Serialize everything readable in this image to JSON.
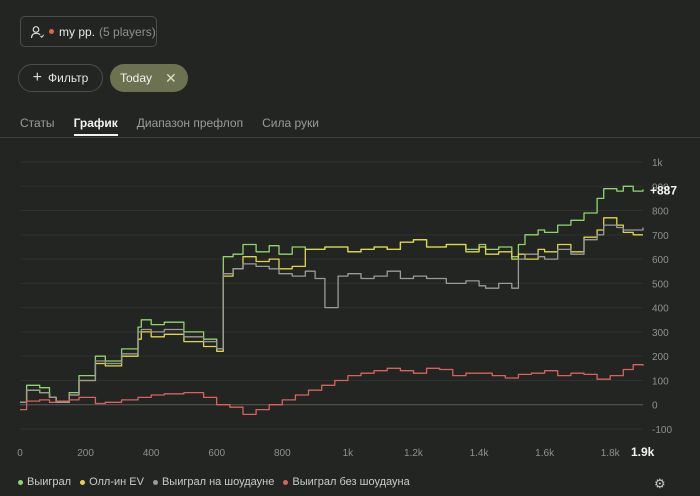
{
  "player": {
    "name": "my pp.",
    "count": "(5 players)",
    "status_color": "#e0663e"
  },
  "filters": {
    "add_label": "Фильтр",
    "active_chip": "Today",
    "remove_glyph": "✕"
  },
  "tabs": [
    {
      "label": "Статы",
      "active": false
    },
    {
      "label": "График",
      "active": true
    },
    {
      "label": "Диапазон префлоп",
      "active": false
    },
    {
      "label": "Сила руки",
      "active": false
    }
  ],
  "chart_data": {
    "type": "line",
    "x_ticks": [
      "0",
      "200",
      "400",
      "600",
      "800",
      "1k",
      "1.2k",
      "1.4k",
      "1.6k",
      "1.8k",
      "1.9k"
    ],
    "y_ticks": [
      "1k",
      "900",
      "800",
      "700",
      "600",
      "500",
      "400",
      "300",
      "200",
      "100",
      "0",
      "-100"
    ],
    "xlim": [
      0,
      1900
    ],
    "ylim": [
      -100,
      1000
    ],
    "end_label": "+887",
    "series": [
      {
        "name": "Выиграл",
        "color": "#8fd66a",
        "x": [
          0,
          20,
          60,
          90,
          110,
          150,
          180,
          230,
          260,
          310,
          360,
          370,
          400,
          440,
          500,
          560,
          600,
          620,
          650,
          680,
          720,
          760,
          790,
          830,
          870,
          900,
          930,
          1000,
          1040,
          1080,
          1120,
          1160,
          1200,
          1240,
          1300,
          1360,
          1400,
          1420,
          1460,
          1500,
          1520,
          1540,
          1580,
          1600,
          1640,
          1680,
          1720,
          1760,
          1780,
          1820,
          1840,
          1870,
          1900
        ],
        "y": [
          10,
          80,
          70,
          30,
          10,
          50,
          120,
          200,
          180,
          230,
          320,
          350,
          330,
          340,
          300,
          270,
          230,
          610,
          620,
          660,
          630,
          655,
          620,
          650,
          640,
          640,
          650,
          630,
          640,
          650,
          640,
          670,
          680,
          650,
          660,
          640,
          660,
          640,
          650,
          610,
          660,
          700,
          720,
          710,
          740,
          760,
          790,
          850,
          890,
          880,
          900,
          880,
          887
        ]
      },
      {
        "name": "Олл-ин EV",
        "color": "#e2d646",
        "x": [
          0,
          20,
          60,
          90,
          110,
          150,
          180,
          230,
          260,
          310,
          360,
          370,
          400,
          440,
          500,
          560,
          600,
          620,
          650,
          680,
          720,
          760,
          790,
          830,
          870,
          900,
          930,
          1000,
          1040,
          1080,
          1120,
          1160,
          1200,
          1240,
          1300,
          1360,
          1400,
          1420,
          1460,
          1500,
          1520,
          1540,
          1580,
          1600,
          1640,
          1680,
          1720,
          1760,
          1780,
          1820,
          1840,
          1870,
          1900
        ],
        "y": [
          10,
          60,
          50,
          30,
          10,
          40,
          100,
          170,
          160,
          200,
          270,
          300,
          280,
          290,
          260,
          240,
          220,
          530,
          560,
          610,
          590,
          600,
          560,
          570,
          640,
          640,
          650,
          630,
          640,
          650,
          640,
          670,
          680,
          650,
          660,
          630,
          650,
          620,
          630,
          600,
          620,
          600,
          640,
          630,
          660,
          630,
          690,
          720,
          770,
          740,
          710,
          700,
          700
        ]
      },
      {
        "name": "Выиграл на шоудауне",
        "color": "#9a9a9a",
        "x": [
          0,
          20,
          60,
          90,
          110,
          150,
          180,
          230,
          260,
          310,
          360,
          370,
          400,
          440,
          500,
          560,
          600,
          620,
          650,
          680,
          720,
          760,
          790,
          830,
          870,
          900,
          930,
          970,
          1000,
          1040,
          1080,
          1120,
          1160,
          1200,
          1240,
          1300,
          1360,
          1400,
          1420,
          1460,
          1500,
          1520,
          1540,
          1580,
          1600,
          1640,
          1680,
          1720,
          1760,
          1780,
          1820,
          1840,
          1870,
          1900
        ],
        "y": [
          10,
          60,
          50,
          30,
          10,
          40,
          100,
          180,
          170,
          210,
          300,
          310,
          300,
          310,
          280,
          260,
          230,
          540,
          560,
          580,
          570,
          560,
          540,
          530,
          550,
          520,
          400,
          530,
          540,
          520,
          530,
          550,
          520,
          530,
          520,
          500,
          510,
          490,
          480,
          500,
          480,
          600,
          620,
          610,
          600,
          640,
          620,
          680,
          700,
          740,
          730,
          720,
          720,
          730
        ]
      },
      {
        "name": "Выиграл без шоудауна",
        "color": "#d9625c",
        "x": [
          0,
          20,
          60,
          90,
          110,
          150,
          180,
          230,
          260,
          310,
          360,
          400,
          440,
          500,
          560,
          600,
          640,
          680,
          720,
          760,
          800,
          840,
          880,
          920,
          960,
          1000,
          1040,
          1080,
          1120,
          1160,
          1200,
          1240,
          1280,
          1320,
          1360,
          1400,
          1440,
          1480,
          1520,
          1560,
          1600,
          1640,
          1680,
          1720,
          1760,
          1800,
          1840,
          1870,
          1900
        ],
        "y": [
          -20,
          15,
          20,
          10,
          15,
          20,
          30,
          5,
          10,
          20,
          30,
          40,
          45,
          50,
          30,
          0,
          -10,
          -40,
          -20,
          0,
          20,
          40,
          60,
          80,
          100,
          120,
          130,
          140,
          150,
          140,
          130,
          150,
          145,
          120,
          130,
          130,
          120,
          110,
          125,
          130,
          140,
          120,
          130,
          125,
          105,
          120,
          145,
          165,
          160
        ]
      }
    ]
  },
  "legend": [
    {
      "label": "Выиграл",
      "color": "#8fd66a"
    },
    {
      "label": "Олл-ин EV",
      "color": "#e2d646"
    },
    {
      "label": "Выиграл на шоудауне",
      "color": "#9a9a9a"
    },
    {
      "label": "Выиграл без шоудауна",
      "color": "#d9625c"
    }
  ],
  "icons": {
    "settings": "gear-icon",
    "user": "user-icon"
  }
}
